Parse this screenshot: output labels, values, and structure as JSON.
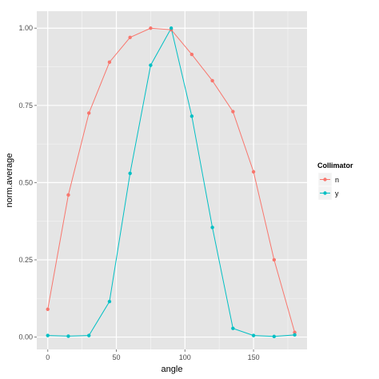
{
  "chart_data": {
    "type": "line",
    "xlabel": "angle",
    "ylabel": "norm.average",
    "xlim": [
      -8,
      189
    ],
    "ylim": [
      -0.04,
      1.055
    ],
    "x_ticks": [
      0,
      50,
      100,
      150
    ],
    "x_tick_labels": [
      "0",
      "50",
      "100",
      "150"
    ],
    "y_ticks": [
      0.0,
      0.25,
      0.5,
      0.75,
      1.0
    ],
    "y_tick_labels": [
      "0.00",
      "0.25",
      "0.50",
      "0.75",
      "1.00"
    ],
    "grid": true,
    "legend": {
      "title": "Collimator",
      "position": "right"
    },
    "x": [
      0,
      15,
      30,
      45,
      60,
      75,
      90,
      105,
      120,
      135,
      150,
      165,
      180
    ],
    "series": [
      {
        "name": "n",
        "color": "#F8766D",
        "values": [
          0.09,
          0.46,
          0.725,
          0.89,
          0.97,
          1.0,
          0.995,
          0.915,
          0.83,
          0.73,
          0.535,
          0.25,
          0.015
        ]
      },
      {
        "name": "y",
        "color": "#00BFC4",
        "values": [
          0.005,
          0.003,
          0.005,
          0.115,
          0.53,
          0.88,
          1.0,
          0.715,
          0.355,
          0.028,
          0.005,
          0.002,
          0.007
        ]
      }
    ]
  },
  "colors": {
    "panel_background": "#E5E5E5",
    "grid_major": "#FFFFFF",
    "grid_minor": "#F2F2F2"
  }
}
